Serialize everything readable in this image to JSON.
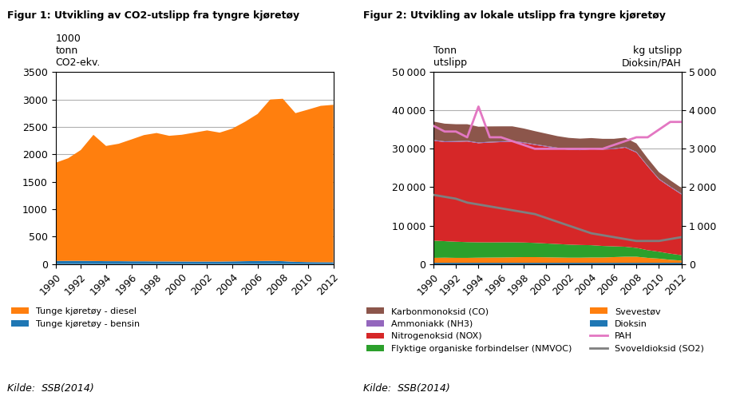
{
  "chart_data": [
    {
      "type": "area",
      "stacked": true,
      "title": "Figur 1: Utvikling av CO2-utslipp fra tyngre kjøretøy",
      "ylabel": "1000\ntonn\nCO2-ekv.",
      "annotations": [
        "Kilde:  SSB(2014)"
      ],
      "x": [
        1990,
        1991,
        1992,
        1993,
        1994,
        1995,
        1996,
        1997,
        1998,
        1999,
        2000,
        2001,
        2002,
        2003,
        2004,
        2005,
        2006,
        2007,
        2008,
        2009,
        2010,
        2011,
        2012
      ],
      "xlim": [
        1990,
        2012
      ],
      "xticks": [
        1990,
        1992,
        1994,
        1996,
        1998,
        2000,
        2002,
        2004,
        2006,
        2008,
        2010,
        2012
      ],
      "ylim": [
        0,
        3500
      ],
      "yticks": [
        0,
        500,
        1000,
        1500,
        2000,
        2500,
        3000,
        3500
      ],
      "grid": true,
      "legend": "upper left",
      "series": [
        {
          "name": "Tunge kjøretøy - bensin",
          "values": [
            55,
            58,
            58,
            55,
            52,
            52,
            50,
            50,
            48,
            47,
            46,
            45,
            45,
            45,
            48,
            52,
            55,
            58,
            52,
            40,
            35,
            33,
            32
          ]
        },
        {
          "name": "Tunge kjøretøy - diesel",
          "values": [
            1790,
            1870,
            2020,
            2300,
            2100,
            2140,
            2220,
            2300,
            2340,
            2290,
            2310,
            2350,
            2390,
            2350,
            2420,
            2540,
            2680,
            2940,
            2960,
            2710,
            2780,
            2850,
            2870
          ]
        }
      ]
    },
    {
      "type": "area",
      "stacked": true,
      "title": "Figur 2: Utvikling av lokale utslipp fra tyngre kjøretøy",
      "ylabel": "Tonn\nutslipp",
      "y2label": "kg utslipp\nDioksin/PAH",
      "annotations": [
        "Kilde:  SSB(2014)"
      ],
      "x": [
        1990,
        1991,
        1992,
        1993,
        1994,
        1995,
        1996,
        1997,
        1998,
        1999,
        2000,
        2001,
        2002,
        2003,
        2004,
        2005,
        2006,
        2007,
        2008,
        2009,
        2010,
        2011,
        2012
      ],
      "xlim": [
        1990,
        2012
      ],
      "xticks": [
        1990,
        1992,
        1994,
        1996,
        1998,
        2000,
        2002,
        2004,
        2006,
        2008,
        2010,
        2012
      ],
      "ylim": [
        0,
        50000
      ],
      "yticks": [
        0,
        {
          "value": 10000,
          "label": "10 000"
        },
        {
          "value": 20000,
          "label": "20 000"
        },
        {
          "value": 30000,
          "label": "30 000"
        },
        {
          "value": 40000,
          "label": "40 000"
        },
        {
          "value": 50000,
          "label": "50 000"
        }
      ],
      "y2lim": [
        0,
        5000
      ],
      "y2ticks": [
        0,
        {
          "value": 1000,
          "label": "1 000"
        },
        {
          "value": 2000,
          "label": "2 000"
        },
        {
          "value": 3000,
          "label": "3 000"
        },
        {
          "value": 4000,
          "label": "4 000"
        },
        {
          "value": 5000,
          "label": "5 000"
        }
      ],
      "grid": true,
      "legend": "upper left",
      "series": [
        {
          "name": "Dioksin",
          "values": [
            300,
            300,
            300,
            300,
            300,
            300,
            300,
            300,
            300,
            300,
            300,
            300,
            300,
            300,
            300,
            300,
            300,
            300,
            300,
            300,
            300,
            300,
            300
          ]
        },
        {
          "name": "Svevestøv",
          "values": [
            1300,
            1350,
            1300,
            1300,
            1350,
            1380,
            1400,
            1450,
            1500,
            1500,
            1450,
            1400,
            1350,
            1350,
            1400,
            1400,
            1500,
            1600,
            1600,
            1300,
            1100,
            800,
            600
          ]
        },
        {
          "name": "Flyktige organiske forbindelser (NMVOC)",
          "values": [
            4500,
            4300,
            4200,
            4100,
            4000,
            3950,
            3950,
            3900,
            3800,
            3700,
            3600,
            3500,
            3400,
            3300,
            3200,
            3000,
            2800,
            2600,
            2300,
            2000,
            1800,
            1600,
            1400
          ]
        },
        {
          "name": "Nitrogenoksid (NOX)",
          "values": [
            26000,
            25800,
            26000,
            26200,
            25800,
            26000,
            26100,
            26200,
            25900,
            25500,
            25200,
            24900,
            24700,
            24700,
            25000,
            25100,
            25300,
            25800,
            24800,
            21800,
            18800,
            17300,
            15800
          ]
        },
        {
          "name": "Ammoniakk (NH3)",
          "values": [
            200,
            200,
            200,
            200,
            200,
            200,
            200,
            200,
            200,
            200,
            200,
            200,
            200,
            200,
            200,
            200,
            200,
            200,
            200,
            200,
            200,
            200,
            200
          ]
        },
        {
          "name": "Karbonmonoksid (CO)",
          "values": [
            4800,
            4600,
            4400,
            4300,
            4100,
            4000,
            3900,
            3800,
            3600,
            3400,
            3200,
            3000,
            2900,
            2800,
            2700,
            2600,
            2500,
            2400,
            2200,
            1900,
            1700,
            1600,
            1500
          ]
        },
        {
          "name": "PAH",
          "type": "line",
          "axis": "y2",
          "values": [
            3600,
            3450,
            3450,
            3300,
            4100,
            3300,
            3300,
            3200,
            3100,
            3000,
            3000,
            3000,
            3000,
            3000,
            3000,
            3000,
            3100,
            3200,
            3300,
            3300,
            3500,
            3700,
            3700
          ]
        },
        {
          "name": "Svoveldioksid (SO2)",
          "type": "line",
          "axis": "y2",
          "values": [
            1800,
            1750,
            1700,
            1600,
            1550,
            1500,
            1450,
            1400,
            1350,
            1300,
            1200,
            1100,
            1000,
            900,
            800,
            750,
            700,
            650,
            600,
            600,
            600,
            650,
            700
          ]
        }
      ]
    }
  ]
}
